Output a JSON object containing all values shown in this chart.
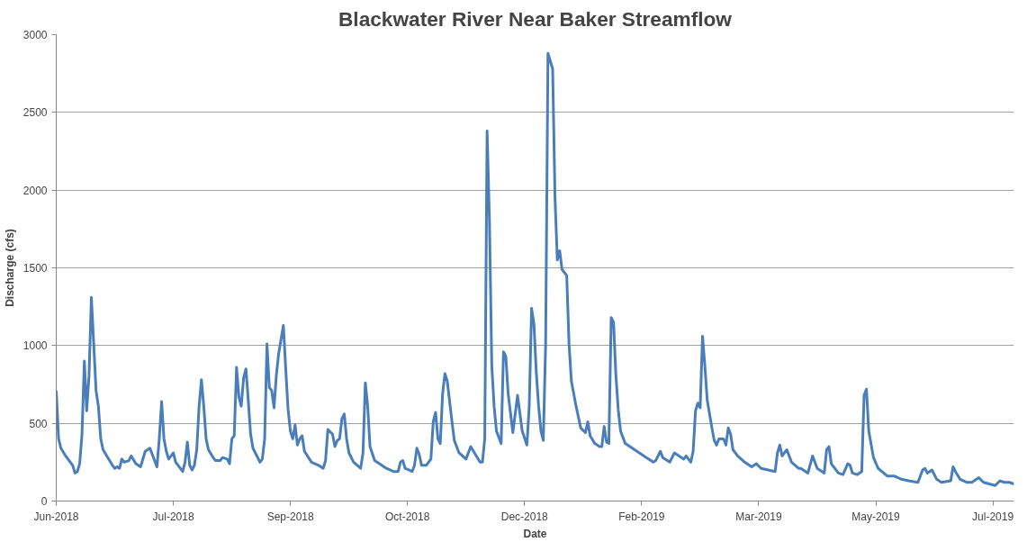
{
  "chart_data": {
    "type": "line",
    "title": "Blackwater River Near Baker Streamflow",
    "xlabel": "Date",
    "ylabel": "Discharge (cfs)",
    "xlim": [
      "2018-06-01",
      "2019-07-15"
    ],
    "xticks": [
      {
        "value": "2018-06-01",
        "label": "Jun-2018"
      },
      {
        "value": "2018-07-21",
        "label": "Jul-2018"
      },
      {
        "value": "2018-09-09",
        "label": "Sep-2018"
      },
      {
        "value": "2018-10-29",
        "label": "Oct-2018"
      },
      {
        "value": "2018-12-18",
        "label": "Dec-2018"
      },
      {
        "value": "2019-02-06",
        "label": "Feb-2019"
      },
      {
        "value": "2019-03-28",
        "label": "Mar-2019"
      },
      {
        "value": "2019-05-17",
        "label": "May-2019"
      },
      {
        "value": "2019-07-06",
        "label": "Jul-2019"
      }
    ],
    "ylim": [
      0,
      3000
    ],
    "yticks": [
      0,
      500,
      1000,
      1500,
      2000,
      2500,
      3000
    ],
    "grid": "y",
    "marker": "none",
    "line_style": "solid",
    "series": [
      {
        "color": "#4a7ebb",
        "x": [
          "2018-06-01",
          "2018-06-02",
          "2018-06-03",
          "2018-06-05",
          "2018-06-08",
          "2018-06-09",
          "2018-06-10",
          "2018-06-11",
          "2018-06-12",
          "2018-06-13",
          "2018-06-14",
          "2018-06-15",
          "2018-06-16",
          "2018-06-17",
          "2018-06-18",
          "2018-06-19",
          "2018-06-20",
          "2018-06-21",
          "2018-06-23",
          "2018-06-25",
          "2018-06-26",
          "2018-06-27",
          "2018-06-28",
          "2018-06-29",
          "2018-06-30",
          "2018-07-02",
          "2018-07-03",
          "2018-07-05",
          "2018-07-07",
          "2018-07-09",
          "2018-07-11",
          "2018-07-14",
          "2018-07-15",
          "2018-07-16",
          "2018-07-17",
          "2018-07-18",
          "2018-07-19",
          "2018-07-21",
          "2018-07-22",
          "2018-07-25",
          "2018-07-26",
          "2018-07-27",
          "2018-07-28",
          "2018-07-29",
          "2018-07-30",
          "2018-07-31",
          "2018-08-01",
          "2018-08-02",
          "2018-08-03",
          "2018-08-04",
          "2018-08-05",
          "2018-08-07",
          "2018-08-08",
          "2018-08-10",
          "2018-08-11",
          "2018-08-13",
          "2018-08-14",
          "2018-08-15",
          "2018-08-16",
          "2018-08-17",
          "2018-08-18",
          "2018-08-19",
          "2018-08-20",
          "2018-08-21",
          "2018-08-22",
          "2018-08-23",
          "2018-08-24",
          "2018-08-26",
          "2018-08-27",
          "2018-08-28",
          "2018-08-29",
          "2018-08-30",
          "2018-08-31",
          "2018-09-01",
          "2018-09-02",
          "2018-09-03",
          "2018-09-04",
          "2018-09-06",
          "2018-09-07",
          "2018-09-08",
          "2018-09-09",
          "2018-09-10",
          "2018-09-11",
          "2018-09-12",
          "2018-09-13",
          "2018-09-14",
          "2018-09-15",
          "2018-09-18",
          "2018-09-21",
          "2018-09-23",
          "2018-09-24",
          "2018-09-25",
          "2018-09-27",
          "2018-09-28",
          "2018-09-29",
          "2018-09-30",
          "2018-10-01",
          "2018-10-02",
          "2018-10-03",
          "2018-10-04",
          "2018-10-06",
          "2018-10-09",
          "2018-10-10",
          "2018-10-11",
          "2018-10-12",
          "2018-10-13",
          "2018-10-15",
          "2018-10-18",
          "2018-10-20",
          "2018-10-23",
          "2018-10-25",
          "2018-10-26",
          "2018-10-27",
          "2018-10-28",
          "2018-10-31",
          "2018-11-01",
          "2018-11-02",
          "2018-11-03",
          "2018-11-04",
          "2018-11-06",
          "2018-11-08",
          "2018-11-09",
          "2018-11-10",
          "2018-11-11",
          "2018-11-12",
          "2018-11-13",
          "2018-11-14",
          "2018-11-15",
          "2018-11-17",
          "2018-11-18",
          "2018-11-20",
          "2018-11-23",
          "2018-11-25",
          "2018-11-27",
          "2018-11-29",
          "2018-11-30",
          "2018-12-01",
          "2018-12-02",
          "2018-12-03",
          "2018-12-04",
          "2018-12-05",
          "2018-12-06",
          "2018-12-08",
          "2018-12-09",
          "2018-12-10",
          "2018-12-11",
          "2018-12-13",
          "2018-12-15",
          "2018-12-17",
          "2018-12-19",
          "2018-12-20",
          "2018-12-21",
          "2018-12-22",
          "2018-12-23",
          "2018-12-24",
          "2018-12-25",
          "2018-12-26",
          "2018-12-27",
          "2018-12-28",
          "2018-12-30",
          "2018-12-31",
          "2019-01-01",
          "2019-01-02",
          "2019-01-03",
          "2019-01-05",
          "2019-01-06",
          "2019-01-07",
          "2019-01-09",
          "2019-01-11",
          "2019-01-13",
          "2019-01-14",
          "2019-01-15",
          "2019-01-17",
          "2019-01-19",
          "2019-01-20",
          "2019-01-21",
          "2019-01-22",
          "2019-01-23",
          "2019-01-24",
          "2019-01-25",
          "2019-01-26",
          "2019-01-27",
          "2019-01-28",
          "2019-01-30",
          "2019-02-02",
          "2019-02-05",
          "2019-02-08",
          "2019-02-11",
          "2019-02-12",
          "2019-02-14",
          "2019-02-15",
          "2019-02-18",
          "2019-02-20",
          "2019-02-22",
          "2019-02-24",
          "2019-02-25",
          "2019-02-27",
          "2019-02-28",
          "2019-03-01",
          "2019-03-02",
          "2019-03-03",
          "2019-03-04",
          "2019-03-05",
          "2019-03-06",
          "2019-03-08",
          "2019-03-09",
          "2019-03-10",
          "2019-03-11",
          "2019-03-13",
          "2019-03-14",
          "2019-03-15",
          "2019-03-16",
          "2019-03-17",
          "2019-03-19",
          "2019-03-22",
          "2019-03-25",
          "2019-03-27",
          "2019-03-29",
          "2019-04-01",
          "2019-04-04",
          "2019-04-05",
          "2019-04-06",
          "2019-04-07",
          "2019-04-09",
          "2019-04-11",
          "2019-04-14",
          "2019-04-15",
          "2019-04-18",
          "2019-04-20",
          "2019-04-22",
          "2019-04-25",
          "2019-04-26",
          "2019-04-27",
          "2019-04-28",
          "2019-05-01",
          "2019-05-03",
          "2019-05-05",
          "2019-05-06",
          "2019-05-07",
          "2019-05-09",
          "2019-05-11",
          "2019-05-12",
          "2019-05-13",
          "2019-05-14",
          "2019-05-16",
          "2019-05-18",
          "2019-05-22",
          "2019-05-25",
          "2019-05-28",
          "2019-05-31",
          "2019-06-04",
          "2019-06-06",
          "2019-06-07",
          "2019-06-08",
          "2019-06-10",
          "2019-06-12",
          "2019-06-14",
          "2019-06-18",
          "2019-06-19",
          "2019-06-20",
          "2019-06-22",
          "2019-06-25",
          "2019-06-27",
          "2019-06-30",
          "2019-07-02",
          "2019-07-07",
          "2019-07-09",
          "2019-07-11",
          "2019-07-13",
          "2019-07-15"
        ],
        "values": [
          710,
          400,
          340,
          290,
          230,
          180,
          190,
          240,
          430,
          900,
          580,
          810,
          1310,
          1010,
          710,
          610,
          400,
          330,
          280,
          230,
          210,
          220,
          210,
          270,
          250,
          260,
          290,
          240,
          220,
          320,
          340,
          220,
          400,
          640,
          400,
          320,
          270,
          310,
          250,
          190,
          250,
          380,
          230,
          200,
          230,
          330,
          610,
          780,
          610,
          400,
          330,
          280,
          260,
          260,
          280,
          270,
          240,
          400,
          420,
          860,
          670,
          610,
          790,
          850,
          650,
          430,
          340,
          280,
          250,
          270,
          400,
          1010,
          730,
          710,
          600,
          810,
          950,
          1130,
          850,
          590,
          450,
          400,
          490,
          360,
          400,
          420,
          320,
          250,
          230,
          210,
          260,
          460,
          430,
          350,
          390,
          400,
          530,
          560,
          400,
          310,
          250,
          210,
          310,
          760,
          610,
          350,
          260,
          230,
          210,
          190,
          190,
          250,
          260,
          210,
          190,
          230,
          340,
          300,
          230,
          230,
          270,
          510,
          570,
          400,
          370,
          690,
          820,
          770,
          510,
          390,
          310,
          270,
          350,
          300,
          250,
          250,
          400,
          2380,
          1810,
          870,
          610,
          450,
          370,
          960,
          930,
          690,
          440,
          680,
          450,
          360,
          610,
          1240,
          1140,
          830,
          610,
          450,
          390,
          1010,
          2880,
          2780,
          1950,
          1550,
          1610,
          1490,
          1450,
          1010,
          770,
          610,
          470,
          440,
          510,
          420,
          370,
          350,
          350,
          480,
          380,
          370,
          1180,
          1150,
          810,
          590,
          450,
          370,
          340,
          310,
          280,
          250,
          260,
          320,
          280,
          250,
          310,
          290,
          270,
          290,
          250,
          320,
          580,
          630,
          600,
          1060,
          870,
          650,
          470,
          390,
          360,
          400,
          400,
          360,
          470,
          430,
          330,
          290,
          250,
          220,
          240,
          210,
          200,
          190,
          310,
          360,
          290,
          330,
          250,
          210,
          210,
          180,
          290,
          210,
          180,
          330,
          350,
          240,
          180,
          170,
          240,
          230,
          180,
          170,
          190,
          680,
          720,
          450,
          280,
          210,
          160,
          160,
          140,
          130,
          120,
          200,
          210,
          180,
          200,
          140,
          120,
          130,
          220,
          190,
          140,
          120,
          120,
          150,
          120,
          100,
          130,
          120,
          120,
          110
        ]
      }
    ]
  }
}
